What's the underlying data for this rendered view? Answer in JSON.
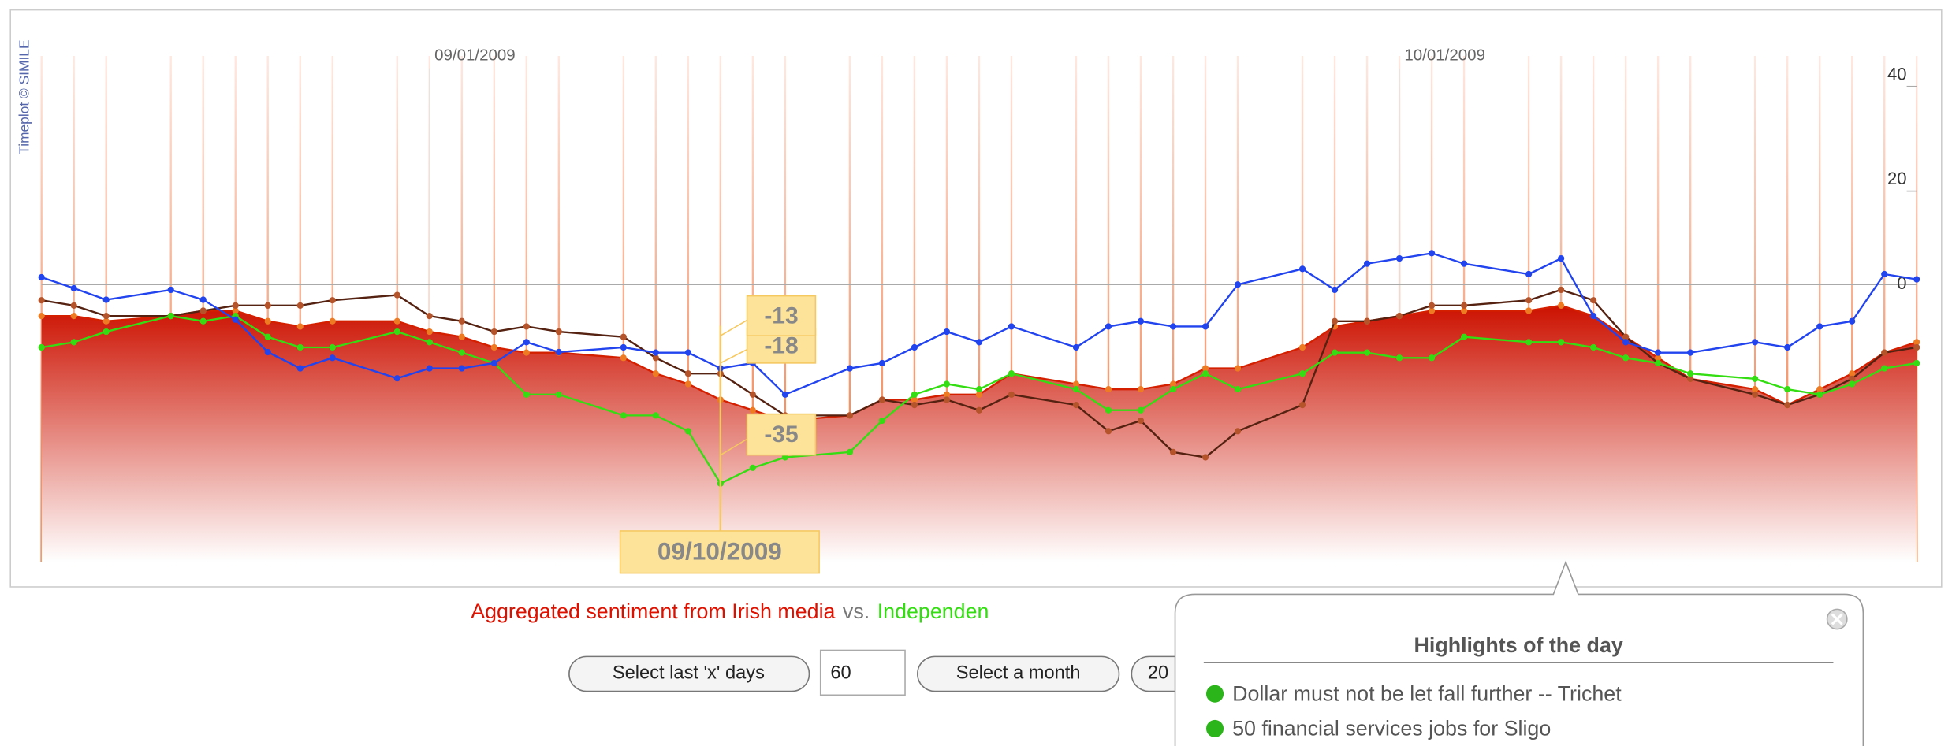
{
  "chart_data": {
    "type": "line",
    "credit": "Timeplot © SIMILE",
    "x": [
      "08/20/2009",
      "08/21/2009",
      "08/22/2009",
      "08/24/2009",
      "08/25/2009",
      "08/26/2009",
      "08/27/2009",
      "08/28/2009",
      "08/29/2009",
      "08/31/2009",
      "09/01/2009",
      "09/02/2009",
      "09/03/2009",
      "09/04/2009",
      "09/05/2009",
      "09/07/2009",
      "09/08/2009",
      "09/09/2009",
      "09/10/2009",
      "09/11/2009",
      "09/12/2009",
      "09/14/2009",
      "09/15/2009",
      "09/16/2009",
      "09/17/2009",
      "09/18/2009",
      "09/19/2009",
      "09/21/2009",
      "09/22/2009",
      "09/23/2009",
      "09/24/2009",
      "09/25/2009",
      "09/26/2009",
      "09/28/2009",
      "09/29/2009",
      "09/30/2009",
      "10/01/2009",
      "10/02/2009",
      "10/03/2009",
      "10/05/2009",
      "10/06/2009",
      "10/07/2009",
      "10/08/2009",
      "10/09/2009",
      "10/10/2009",
      "10/12/2009",
      "10/13/2009",
      "10/14/2009",
      "10/15/2009",
      "10/16/2009",
      "10/17/2009"
    ],
    "series": [
      {
        "style": "area",
        "color": "#d42000",
        "point_color": "#ee7a22",
        "values": [
          -6,
          -6,
          -7,
          -6,
          -5,
          -5,
          -7,
          -8,
          -7,
          -7,
          -9,
          -10,
          -12,
          -13,
          -13,
          -14,
          -17,
          -19,
          -22,
          -24,
          -26,
          -25,
          -22,
          -22,
          -21,
          -21,
          -17,
          -19,
          -20,
          -20,
          -19,
          -16,
          -16,
          -12,
          -8,
          -7,
          -6,
          -5,
          -5,
          -5,
          -4,
          -6,
          -10,
          -14,
          -18,
          -20,
          -23,
          -20,
          -17,
          -13,
          -11
        ]
      },
      {
        "style": "line",
        "color": "#552211",
        "point_color": "#b5532a",
        "values": [
          -3,
          -4,
          -6,
          -6,
          -5,
          -4,
          -4,
          -4,
          -3,
          -2,
          -6,
          -7,
          -9,
          -8,
          -9,
          -10,
          -14,
          -17,
          -17,
          -21,
          -25,
          -25,
          -22,
          -23,
          -22,
          -24,
          -21,
          -23,
          -28,
          -26,
          -32,
          -33,
          -28,
          -23,
          -7,
          -7,
          -6,
          -4,
          -4,
          -3,
          -1,
          -3,
          -10,
          -15,
          -18,
          -21,
          -23,
          -21,
          -18,
          -13,
          -12
        ]
      },
      {
        "style": "line",
        "color": "#33dd11",
        "point_color": "#33dd11",
        "values": [
          -12,
          -11,
          -9,
          -6,
          -7,
          -6,
          -10,
          -12,
          -12,
          -9,
          -11,
          -13,
          -15,
          -21,
          -21,
          -25,
          -25,
          -28,
          -38,
          -35,
          -33,
          -32,
          -26,
          -21,
          -19,
          -20,
          -17,
          -20,
          -24,
          -24,
          -20,
          -17,
          -20,
          -17,
          -13,
          -13,
          -14,
          -14,
          -10,
          -11,
          -11,
          -12,
          -14,
          -15,
          -17,
          -18,
          -20,
          -21,
          -19,
          -16,
          -15
        ]
      },
      {
        "style": "line",
        "color": "#2244ee",
        "point_color": "#2244ee",
        "values": [
          1.4,
          -0.7,
          -2.9,
          -1,
          -2.9,
          -6.7,
          -12.9,
          -16,
          -14,
          -17.9,
          -16,
          -16,
          -15,
          -11,
          -12.9,
          -12,
          -13,
          -13,
          -16,
          -15,
          -21,
          -16,
          -15,
          -12,
          -9,
          -11,
          -8,
          -12,
          -8,
          -7,
          -8,
          -8,
          0,
          3,
          -1,
          4,
          5,
          6,
          4,
          2,
          5,
          -6,
          -11,
          -13,
          -13,
          -11,
          -12,
          -8,
          -7,
          2,
          1
        ]
      }
    ],
    "xlim": [
      "08/20/2009",
      "10/17/2009"
    ],
    "xticks": [
      "09/01/2009",
      "10/01/2009"
    ],
    "ylim": [
      -53,
      52
    ],
    "yticks": [
      -40,
      -20,
      0,
      20,
      40
    ],
    "hover": {
      "date": "09/10/2009",
      "labels": [
        "-18",
        "-13",
        "-35"
      ]
    }
  },
  "caption": {
    "source": "Aggregated sentiment from Irish media",
    "vs": "vs.",
    "other": "Independen"
  },
  "controls": {
    "last_days": "Select last 'x' days",
    "days_input": "60",
    "month": "Select a month",
    "year": "20"
  },
  "popup": {
    "title": "Highlights of the day",
    "items": [
      "Dollar must not be let fall further -- Trichet",
      "50 financial services jobs for Sligo"
    ]
  }
}
